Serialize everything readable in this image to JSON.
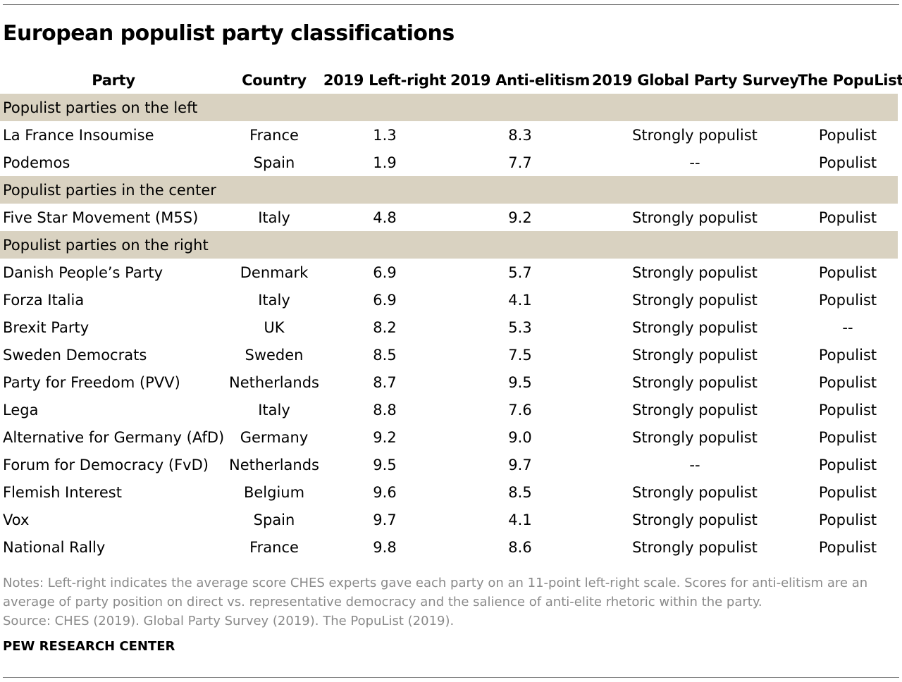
{
  "title": "European populist party classifications",
  "columns": [
    "Party",
    "Country",
    "2019 Left-right",
    "2019 Anti-elitism",
    "2019 Global Party Survey",
    "The PopuList"
  ],
  "groups": [
    {
      "label": "Populist parties on the left",
      "rows": [
        {
          "party": "La France Insoumise",
          "country": "France",
          "left_right": "1.3",
          "anti_elitism": "8.3",
          "gps": "Strongly populist",
          "populist": "Populist"
        },
        {
          "party": "Podemos",
          "country": "Spain",
          "left_right": "1.9",
          "anti_elitism": "7.7",
          "gps": "--",
          "populist": "Populist"
        }
      ]
    },
    {
      "label": "Populist parties in the center",
      "rows": [
        {
          "party": "Five Star Movement (M5S)",
          "country": "Italy",
          "left_right": "4.8",
          "anti_elitism": "9.2",
          "gps": "Strongly populist",
          "populist": "Populist"
        }
      ]
    },
    {
      "label": "Populist parties on the right",
      "rows": [
        {
          "party": "Danish People’s Party",
          "country": "Denmark",
          "left_right": "6.9",
          "anti_elitism": "5.7",
          "gps": "Strongly populist",
          "populist": "Populist"
        },
        {
          "party": "Forza Italia",
          "country": "Italy",
          "left_right": "6.9",
          "anti_elitism": "4.1",
          "gps": "Strongly populist",
          "populist": "Populist"
        },
        {
          "party": "Brexit Party",
          "country": "UK",
          "left_right": "8.2",
          "anti_elitism": "5.3",
          "gps": "Strongly populist",
          "populist": "--"
        },
        {
          "party": "Sweden Democrats",
          "country": "Sweden",
          "left_right": "8.5",
          "anti_elitism": "7.5",
          "gps": "Strongly populist",
          "populist": "Populist"
        },
        {
          "party": "Party for Freedom (PVV)",
          "country": "Netherlands",
          "left_right": "8.7",
          "anti_elitism": "9.5",
          "gps": "Strongly populist",
          "populist": "Populist"
        },
        {
          "party": "Lega",
          "country": "Italy",
          "left_right": "8.8",
          "anti_elitism": "7.6",
          "gps": "Strongly populist",
          "populist": "Populist"
        },
        {
          "party": "Alternative for Germany (AfD)",
          "country": "Germany",
          "left_right": "9.2",
          "anti_elitism": "9.0",
          "gps": "Strongly populist",
          "populist": "Populist"
        },
        {
          "party": "Forum for Democracy (FvD)",
          "country": "Netherlands",
          "left_right": "9.5",
          "anti_elitism": "9.7",
          "gps": "--",
          "populist": "Populist"
        },
        {
          "party": "Flemish Interest",
          "country": "Belgium",
          "left_right": "9.6",
          "anti_elitism": "8.5",
          "gps": "Strongly populist",
          "populist": "Populist"
        },
        {
          "party": "Vox",
          "country": "Spain",
          "left_right": "9.7",
          "anti_elitism": "4.1",
          "gps": "Strongly populist",
          "populist": "Populist"
        },
        {
          "party": "National Rally",
          "country": "France",
          "left_right": "9.8",
          "anti_elitism": "8.6",
          "gps": "Strongly populist",
          "populist": "Populist"
        }
      ]
    }
  ],
  "notes": "Notes: Left-right indicates the average score CHES experts gave each party on an 11-point left-right scale. Scores for anti-elitism are an average of party position on direct vs. representative democracy and the salience of anti-elite rhetoric within the party.",
  "source": "Source: CHES (2019). Global Party Survey (2019). The PopuList (2019).",
  "brand": "PEW RESEARCH CENTER",
  "colors": {
    "section_band": "#d9d2c1",
    "notes_text": "#8a8a8a",
    "rule": "#7a7a7a"
  }
}
